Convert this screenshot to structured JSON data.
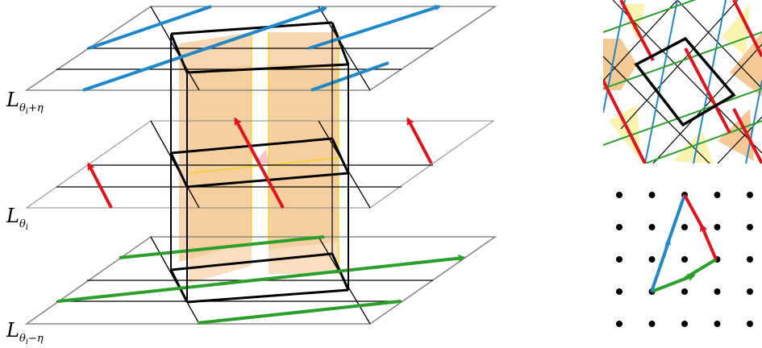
{
  "layers": [
    {
      "id": "top",
      "label": "L",
      "theta": "θ",
      "index": "i",
      "suffix": "+η"
    },
    {
      "id": "middle",
      "label": "L",
      "theta": "θ",
      "index": "i",
      "suffix": ""
    },
    {
      "id": "bottom",
      "label": "L",
      "theta": "θ",
      "index": "i",
      "suffix": "−η"
    }
  ],
  "colors": {
    "blue": "#1e88c9",
    "red": "#e0141e",
    "green": "#2aa02a",
    "orange_fill": "#f5c996",
    "yellow_fill": "#fbf3b0",
    "yellow_line": "#f2d400",
    "frame": "#000000",
    "plane_border": "#888888"
  },
  "right_top_panel": {
    "type": "lattice-tiling",
    "line_colors": [
      "blue",
      "red",
      "green",
      "black"
    ]
  },
  "right_bottom_panel": {
    "type": "dot-lattice",
    "rows": 5,
    "cols": 5,
    "vectors": [
      "blue",
      "red",
      "green"
    ]
  }
}
